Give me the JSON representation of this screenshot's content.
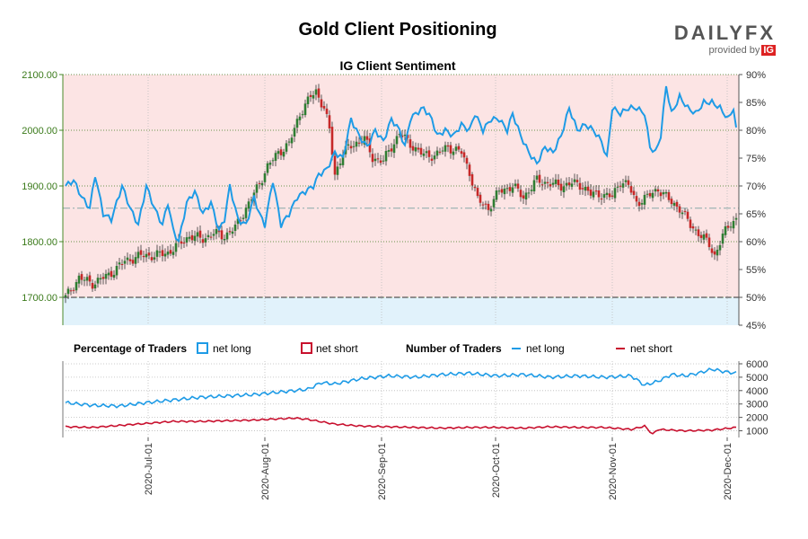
{
  "header": {
    "title": "Gold Client Positioning",
    "brand": "DAILYFX",
    "provided_by": "provided by",
    "ig": "IG"
  },
  "colors": {
    "net_long": "#1e9be6",
    "net_short": "#c8102e",
    "candle_up": "#2e7d32",
    "candle_down": "#c62828",
    "short_zone": "#fce4e4",
    "long_zone": "#e1f2fb",
    "grid": "#3a7a1a"
  },
  "chart_data": [
    {
      "type": "candlestick",
      "title": "IG Client Sentiment",
      "y_left_label_ticks": [
        "1700.00",
        "1800.00",
        "1900.00",
        "2000.00",
        "2100.00"
      ],
      "y_left_range": [
        1650,
        2100
      ],
      "y_right_ticks": [
        "45%",
        "50%",
        "55%",
        "60%",
        "65%",
        "70%",
        "75%",
        "80%",
        "85%",
        "90%"
      ],
      "y_right_range": [
        45,
        90
      ],
      "x_ticks": [
        "2020-Jul-01",
        "2020-Aug-01",
        "2020-Sep-01",
        "2020-Oct-01",
        "2020-Nov-01",
        "2020-Dec-01"
      ],
      "reference_line_pct": 50,
      "dashed_line_pct": 66,
      "price_keypoints": [
        [
          0,
          1700
        ],
        [
          5,
          1735
        ],
        [
          10,
          1725
        ],
        [
          16,
          1740
        ],
        [
          22,
          1765
        ],
        [
          28,
          1775
        ],
        [
          33,
          1775
        ],
        [
          38,
          1780
        ],
        [
          42,
          1795
        ],
        [
          46,
          1810
        ],
        [
          51,
          1805
        ],
        [
          55,
          1815
        ],
        [
          59,
          1810
        ],
        [
          63,
          1825
        ],
        [
          67,
          1860
        ],
        [
          71,
          1895
        ],
        [
          75,
          1935
        ],
        [
          79,
          1960
        ],
        [
          83,
          1975
        ],
        [
          87,
          2030
        ],
        [
          91,
          2060
        ],
        [
          93,
          2070
        ],
        [
          96,
          2040
        ],
        [
          98,
          2000
        ],
        [
          100,
          1920
        ],
        [
          103,
          1960
        ],
        [
          107,
          1975
        ],
        [
          111,
          1985
        ],
        [
          114,
          1950
        ],
        [
          118,
          1945
        ],
        [
          121,
          1970
        ],
        [
          124,
          1995
        ],
        [
          128,
          1975
        ],
        [
          133,
          1955
        ],
        [
          137,
          1955
        ],
        [
          142,
          1970
        ],
        [
          147,
          1960
        ],
        [
          150,
          1925
        ],
        [
          153,
          1875
        ],
        [
          157,
          1860
        ],
        [
          161,
          1890
        ],
        [
          166,
          1900
        ],
        [
          170,
          1880
        ],
        [
          175,
          1910
        ],
        [
          179,
          1905
        ],
        [
          184,
          1900
        ],
        [
          188,
          1905
        ],
        [
          192,
          1900
        ],
        [
          195,
          1885
        ],
        [
          199,
          1885
        ],
        [
          203,
          1880
        ],
        [
          206,
          1910
        ],
        [
          209,
          1900
        ],
        [
          212,
          1870
        ],
        [
          216,
          1880
        ],
        [
          220,
          1895
        ],
        [
          224,
          1875
        ],
        [
          228,
          1860
        ],
        [
          232,
          1830
        ],
        [
          236,
          1810
        ],
        [
          239,
          1795
        ],
        [
          241,
          1775
        ],
        [
          244,
          1810
        ],
        [
          247,
          1835
        ],
        [
          249,
          1840
        ]
      ],
      "net_long_pct_keypoints": [
        [
          0,
          70
        ],
        [
          3,
          71
        ],
        [
          6,
          68
        ],
        [
          9,
          66
        ],
        [
          11,
          72
        ],
        [
          14,
          65
        ],
        [
          17,
          64
        ],
        [
          21,
          70
        ],
        [
          24,
          66
        ],
        [
          27,
          63
        ],
        [
          30,
          70
        ],
        [
          33,
          66
        ],
        [
          36,
          63
        ],
        [
          38,
          67
        ],
        [
          40,
          62
        ],
        [
          42,
          60
        ],
        [
          45,
          67
        ],
        [
          48,
          69
        ],
        [
          51,
          65
        ],
        [
          54,
          67
        ],
        [
          57,
          62
        ],
        [
          59,
          64
        ],
        [
          61,
          70
        ],
        [
          64,
          64
        ],
        [
          67,
          63
        ],
        [
          70,
          68
        ],
        [
          72,
          65
        ],
        [
          74,
          63
        ],
        [
          77,
          71
        ],
        [
          80,
          63
        ],
        [
          83,
          65
        ],
        [
          86,
          68
        ],
        [
          89,
          69
        ],
        [
          92,
          70
        ],
        [
          94,
          72
        ],
        [
          97,
          73
        ],
        [
          100,
          76
        ],
        [
          103,
          75
        ],
        [
          106,
          82
        ],
        [
          109,
          79
        ],
        [
          112,
          77
        ],
        [
          115,
          80
        ],
        [
          118,
          78
        ],
        [
          121,
          82
        ],
        [
          124,
          80
        ],
        [
          126,
          77
        ],
        [
          128,
          82
        ],
        [
          130,
          83
        ],
        [
          133,
          84
        ],
        [
          136,
          82
        ],
        [
          138,
          79
        ],
        [
          141,
          80
        ],
        [
          144,
          79
        ],
        [
          147,
          81
        ],
        [
          150,
          80
        ],
        [
          152,
          83
        ],
        [
          155,
          80
        ],
        [
          158,
          82
        ],
        [
          161,
          82
        ],
        [
          164,
          80
        ],
        [
          166,
          83
        ],
        [
          169,
          79
        ],
        [
          172,
          76
        ],
        [
          175,
          74
        ],
        [
          178,
          77
        ],
        [
          181,
          76
        ],
        [
          184,
          79
        ],
        [
          187,
          84
        ],
        [
          190,
          80
        ],
        [
          193,
          81
        ],
        [
          196,
          80
        ],
        [
          199,
          78
        ],
        [
          201,
          75
        ],
        [
          203,
          84
        ],
        [
          206,
          83
        ],
        [
          209,
          84
        ],
        [
          212,
          84
        ],
        [
          215,
          83
        ],
        [
          217,
          77
        ],
        [
          219,
          76
        ],
        [
          221,
          79
        ],
        [
          223,
          88
        ],
        [
          225,
          83
        ],
        [
          228,
          86
        ],
        [
          231,
          84
        ],
        [
          234,
          83
        ],
        [
          237,
          85
        ],
        [
          240,
          85
        ],
        [
          243,
          84
        ],
        [
          246,
          82
        ],
        [
          248,
          84
        ],
        [
          249,
          80
        ]
      ]
    },
    {
      "type": "line",
      "title": "Number of Traders",
      "y_ticks": [
        "1000",
        "2000",
        "3000",
        "4000",
        "5000",
        "6000"
      ],
      "y_range": [
        500,
        6200
      ],
      "series": [
        {
          "name": "net long",
          "keypoints": [
            [
              0,
              3100
            ],
            [
              10,
              2900
            ],
            [
              20,
              2850
            ],
            [
              30,
              3100
            ],
            [
              40,
              3300
            ],
            [
              50,
              3500
            ],
            [
              60,
              3600
            ],
            [
              70,
              3700
            ],
            [
              80,
              3900
            ],
            [
              90,
              4100
            ],
            [
              95,
              4600
            ],
            [
              100,
              4500
            ],
            [
              110,
              4900
            ],
            [
              120,
              5100
            ],
            [
              130,
              5000
            ],
            [
              140,
              5200
            ],
            [
              150,
              5300
            ],
            [
              160,
              5100
            ],
            [
              170,
              5200
            ],
            [
              180,
              5000
            ],
            [
              190,
              5100
            ],
            [
              200,
              5000
            ],
            [
              210,
              5100
            ],
            [
              215,
              4400
            ],
            [
              220,
              4700
            ],
            [
              225,
              5200
            ],
            [
              230,
              5100
            ],
            [
              235,
              5300
            ],
            [
              240,
              5600
            ],
            [
              245,
              5400
            ],
            [
              249,
              5300
            ]
          ]
        },
        {
          "name": "net short",
          "keypoints": [
            [
              0,
              1300
            ],
            [
              10,
              1250
            ],
            [
              20,
              1400
            ],
            [
              30,
              1550
            ],
            [
              40,
              1700
            ],
            [
              50,
              1700
            ],
            [
              60,
              1750
            ],
            [
              70,
              1800
            ],
            [
              80,
              1900
            ],
            [
              85,
              1950
            ],
            [
              90,
              1850
            ],
            [
              100,
              1500
            ],
            [
              110,
              1350
            ],
            [
              120,
              1300
            ],
            [
              130,
              1250
            ],
            [
              140,
              1200
            ],
            [
              150,
              1250
            ],
            [
              160,
              1250
            ],
            [
              170,
              1200
            ],
            [
              180,
              1300
            ],
            [
              190,
              1250
            ],
            [
              200,
              1250
            ],
            [
              210,
              1100
            ],
            [
              215,
              1350
            ],
            [
              218,
              750
            ],
            [
              220,
              1100
            ],
            [
              230,
              1000
            ],
            [
              240,
              1050
            ],
            [
              249,
              1250
            ]
          ]
        }
      ]
    }
  ],
  "legend": {
    "pct_title": "Percentage of Traders",
    "pct_long": "net long",
    "pct_short": "net short",
    "num_title": "Number of Traders",
    "num_long": "net long",
    "num_short": "net short"
  }
}
